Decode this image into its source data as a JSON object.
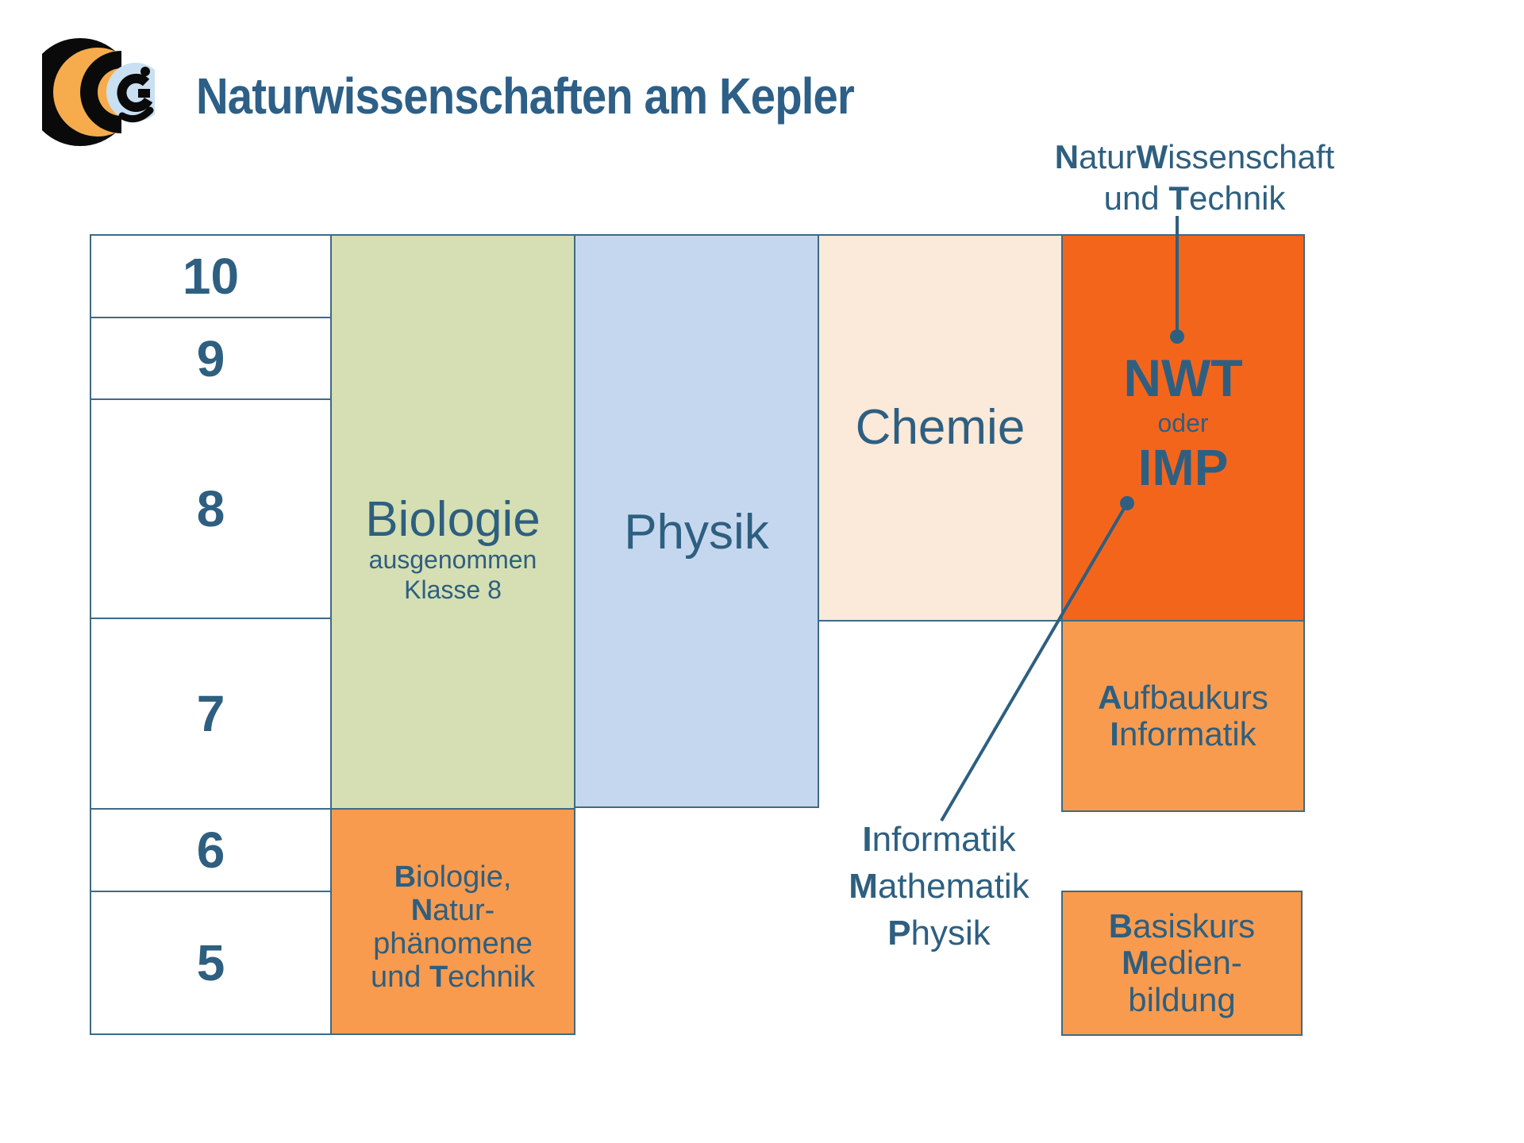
{
  "title": "Naturwissenschaften am Kepler",
  "grades": [
    "10",
    "9",
    "8",
    "7",
    "6",
    "5"
  ],
  "subjects": {
    "biologie": {
      "name": "Biologie",
      "note_line1": "ausgenommen",
      "note_line2": "Klasse 8"
    },
    "physik": {
      "name": "Physik"
    },
    "chemie": {
      "name": "Chemie"
    },
    "nwt": {
      "abbr": "NWT",
      "conjunction": "oder",
      "abbr2": "IMP"
    }
  },
  "rich": {
    "nwt_callout_line1": [
      [
        "N",
        true
      ],
      [
        "atur",
        false
      ],
      [
        "W",
        true
      ],
      [
        "issenschaft",
        false
      ]
    ],
    "nwt_callout_line2": [
      [
        "und ",
        false
      ],
      [
        "T",
        true
      ],
      [
        "echnik",
        false
      ]
    ],
    "aufbaukurs_line1": [
      [
        "A",
        true
      ],
      [
        "ufbaukurs",
        false
      ]
    ],
    "aufbaukurs_line2": [
      [
        "I",
        true
      ],
      [
        "nformatik",
        false
      ]
    ],
    "bnt_line1": [
      [
        "B",
        true
      ],
      [
        "iologie,",
        false
      ]
    ],
    "bnt_line2": [
      [
        "N",
        true
      ],
      [
        "atur-",
        false
      ]
    ],
    "bnt_line3": [
      [
        "phänomene",
        false
      ]
    ],
    "bnt_line4": [
      [
        "und ",
        false
      ],
      [
        "T",
        true
      ],
      [
        "echnik",
        false
      ]
    ],
    "imp_line1": [
      [
        "I",
        true
      ],
      [
        "nformatik",
        false
      ]
    ],
    "imp_line2": [
      [
        "M",
        true
      ],
      [
        "athematik",
        false
      ]
    ],
    "imp_line3": [
      [
        "P",
        true
      ],
      [
        "hysik",
        false
      ]
    ],
    "basiskurs_line1": [
      [
        "B",
        true
      ],
      [
        "asiskurs",
        false
      ]
    ],
    "basiskurs_line2": [
      [
        "M",
        true
      ],
      [
        "edien-",
        false
      ]
    ],
    "basiskurs_line3": [
      [
        "bildung",
        false
      ]
    ]
  },
  "colors": {
    "title_text": "#2D5F87",
    "body_text": "#2E5F80",
    "grid_border": "#3E6A84",
    "biologie_fill": "#D5DFB3",
    "physik_fill": "#C5D7EE",
    "chemie_fill": "#FBE9D9",
    "nwt_fill": "#F4651C",
    "course_fill": "#F89B4E",
    "connector": "#2E5F80",
    "logo_orange": "#F6AC4C",
    "logo_black": "#0A0A0A",
    "logo_blue": "#C9E0F2"
  }
}
